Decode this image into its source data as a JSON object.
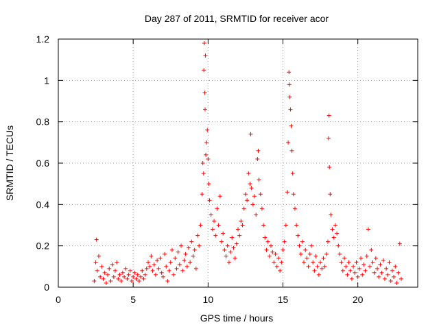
{
  "chart_data": {
    "type": "scatter",
    "title": "Day 287 of 2011, SRMTID for receiver acor",
    "xlabel": "GPS time / hours",
    "ylabel": "SRMTID / TECUs",
    "xlim": [
      0,
      24
    ],
    "ylim": [
      0,
      1.2
    ],
    "x_ticks": [
      0,
      5,
      10,
      15,
      20
    ],
    "x_tick_labels": [
      "0",
      "5",
      "10",
      "15",
      "20"
    ],
    "y_ticks": [
      0,
      0.2,
      0.4,
      0.6,
      0.8,
      1.0,
      1.2
    ],
    "y_tick_labels": [
      "0",
      "0.2",
      "0.4",
      "0.6",
      "0.8",
      "1",
      "1.2"
    ],
    "grid": true,
    "marker": "plus",
    "marker_color": "#ff0000",
    "series": [
      {
        "values": [
          [
            2.4,
            0.03
          ],
          [
            2.5,
            0.12
          ],
          [
            2.55,
            0.23
          ],
          [
            2.6,
            0.08
          ],
          [
            2.7,
            0.15
          ],
          [
            2.8,
            0.05
          ],
          [
            2.9,
            0.1
          ],
          [
            3.0,
            0.04
          ],
          [
            3.1,
            0.07
          ],
          [
            3.2,
            0.02
          ],
          [
            3.3,
            0.06
          ],
          [
            3.4,
            0.09
          ],
          [
            3.5,
            0.03
          ],
          [
            3.6,
            0.11
          ],
          [
            3.7,
            0.05
          ],
          [
            3.8,
            0.08
          ],
          [
            3.9,
            0.12
          ],
          [
            4.0,
            0.04
          ],
          [
            4.1,
            0.06
          ],
          [
            4.2,
            0.03
          ],
          [
            4.3,
            0.07
          ],
          [
            4.4,
            0.05
          ],
          [
            4.5,
            0.09
          ],
          [
            4.6,
            0.04
          ],
          [
            4.7,
            0.06
          ],
          [
            4.8,
            0.08
          ],
          [
            4.9,
            0.03
          ],
          [
            5.0,
            0.05
          ],
          [
            5.1,
            0.07
          ],
          [
            5.2,
            0.04
          ],
          [
            5.3,
            0.06
          ],
          [
            5.4,
            0.03
          ],
          [
            5.5,
            0.05
          ],
          [
            5.6,
            0.08
          ],
          [
            5.7,
            0.04
          ],
          [
            5.8,
            0.06
          ],
          [
            5.9,
            0.09
          ],
          [
            6.0,
            0.12
          ],
          [
            6.1,
            0.1
          ],
          [
            6.2,
            0.15
          ],
          [
            6.3,
            0.08
          ],
          [
            6.4,
            0.11
          ],
          [
            6.5,
            0.06
          ],
          [
            6.6,
            0.13
          ],
          [
            6.7,
            0.09
          ],
          [
            6.8,
            0.14
          ],
          [
            6.9,
            0.07
          ],
          [
            7.0,
            0.05
          ],
          [
            7.1,
            0.16
          ],
          [
            7.2,
            0.1
          ],
          [
            7.3,
            0.03
          ],
          [
            7.4,
            0.08
          ],
          [
            7.5,
            0.12
          ],
          [
            7.6,
            0.18
          ],
          [
            7.7,
            0.06
          ],
          [
            7.8,
            0.14
          ],
          [
            7.9,
            0.09
          ],
          [
            8.0,
            0.17
          ],
          [
            8.1,
            0.11
          ],
          [
            8.2,
            0.2
          ],
          [
            8.3,
            0.08
          ],
          [
            8.4,
            0.13
          ],
          [
            8.5,
            0.16
          ],
          [
            8.6,
            0.1
          ],
          [
            8.7,
            0.19
          ],
          [
            8.8,
            0.12
          ],
          [
            8.9,
            0.22
          ],
          [
            9.0,
            0.15
          ],
          [
            9.1,
            0.18
          ],
          [
            9.2,
            0.09
          ],
          [
            9.3,
            0.25
          ],
          [
            9.4,
            0.2
          ],
          [
            9.5,
            0.3
          ],
          [
            9.6,
            0.45
          ],
          [
            9.65,
            0.6
          ],
          [
            9.7,
            0.55
          ],
          [
            9.72,
            1.05
          ],
          [
            9.75,
            1.18
          ],
          [
            9.78,
            0.94
          ],
          [
            9.8,
            0.86
          ],
          [
            9.82,
            1.12
          ],
          [
            9.85,
            0.64
          ],
          [
            9.9,
            0.7
          ],
          [
            9.95,
            0.76
          ],
          [
            10.0,
            0.62
          ],
          [
            10.05,
            0.5
          ],
          [
            10.1,
            0.42
          ],
          [
            10.2,
            0.35
          ],
          [
            10.3,
            0.28
          ],
          [
            10.4,
            0.32
          ],
          [
            10.5,
            0.25
          ],
          [
            10.6,
            0.38
          ],
          [
            10.7,
            0.3
          ],
          [
            10.8,
            0.44
          ],
          [
            10.9,
            0.22
          ],
          [
            11.0,
            0.26
          ],
          [
            11.1,
            0.18
          ],
          [
            11.2,
            0.15
          ],
          [
            11.3,
            0.2
          ],
          [
            11.4,
            0.12
          ],
          [
            11.5,
            0.17
          ],
          [
            11.6,
            0.24
          ],
          [
            11.7,
            0.19
          ],
          [
            11.8,
            0.14
          ],
          [
            11.9,
            0.21
          ],
          [
            12.0,
            0.28
          ],
          [
            12.1,
            0.25
          ],
          [
            12.2,
            0.32
          ],
          [
            12.3,
            0.3
          ],
          [
            12.4,
            0.38
          ],
          [
            12.5,
            0.45
          ],
          [
            12.6,
            0.42
          ],
          [
            12.7,
            0.55
          ],
          [
            12.8,
            0.5
          ],
          [
            12.85,
            0.74
          ],
          [
            12.9,
            0.48
          ],
          [
            13.0,
            0.4
          ],
          [
            13.1,
            0.44
          ],
          [
            13.2,
            0.35
          ],
          [
            13.3,
            0.62
          ],
          [
            13.35,
            0.66
          ],
          [
            13.4,
            0.52
          ],
          [
            13.5,
            0.45
          ],
          [
            13.6,
            0.38
          ],
          [
            13.7,
            0.3
          ],
          [
            13.8,
            0.24
          ],
          [
            13.9,
            0.18
          ],
          [
            14.0,
            0.22
          ],
          [
            14.1,
            0.15
          ],
          [
            14.2,
            0.2
          ],
          [
            14.3,
            0.17
          ],
          [
            14.4,
            0.12
          ],
          [
            14.5,
            0.16
          ],
          [
            14.6,
            0.1
          ],
          [
            14.7,
            0.14
          ],
          [
            14.8,
            0.08
          ],
          [
            14.9,
            0.12
          ],
          [
            15.0,
            0.18
          ],
          [
            15.1,
            0.22
          ],
          [
            15.2,
            0.3
          ],
          [
            15.3,
            0.46
          ],
          [
            15.35,
            0.7
          ],
          [
            15.4,
            1.04
          ],
          [
            15.42,
            0.98
          ],
          [
            15.45,
            0.92
          ],
          [
            15.5,
            0.86
          ],
          [
            15.55,
            0.78
          ],
          [
            15.6,
            0.66
          ],
          [
            15.65,
            0.55
          ],
          [
            15.7,
            0.45
          ],
          [
            15.8,
            0.38
          ],
          [
            15.9,
            0.3
          ],
          [
            16.0,
            0.25
          ],
          [
            16.1,
            0.2
          ],
          [
            16.2,
            0.16
          ],
          [
            16.3,
            0.22
          ],
          [
            16.4,
            0.12
          ],
          [
            16.5,
            0.18
          ],
          [
            16.6,
            0.14
          ],
          [
            16.7,
            0.1
          ],
          [
            16.8,
            0.16
          ],
          [
            16.9,
            0.2
          ],
          [
            17.0,
            0.12
          ],
          [
            17.1,
            0.08
          ],
          [
            17.2,
            0.15
          ],
          [
            17.3,
            0.1
          ],
          [
            17.4,
            0.06
          ],
          [
            17.5,
            0.12
          ],
          [
            17.6,
            0.09
          ],
          [
            17.7,
            0.14
          ],
          [
            17.8,
            0.1
          ],
          [
            17.9,
            0.16
          ],
          [
            18.0,
            0.22
          ],
          [
            18.05,
            0.72
          ],
          [
            18.08,
            0.83
          ],
          [
            18.1,
            0.58
          ],
          [
            18.15,
            0.45
          ],
          [
            18.2,
            0.35
          ],
          [
            18.3,
            0.28
          ],
          [
            18.4,
            0.24
          ],
          [
            18.5,
            0.3
          ],
          [
            18.6,
            0.26
          ],
          [
            18.7,
            0.2
          ],
          [
            18.8,
            0.16
          ],
          [
            18.9,
            0.12
          ],
          [
            19.0,
            0.08
          ],
          [
            19.1,
            0.14
          ],
          [
            19.2,
            0.1
          ],
          [
            19.3,
            0.06
          ],
          [
            19.4,
            0.12
          ],
          [
            19.5,
            0.08
          ],
          [
            19.6,
            0.04
          ],
          [
            19.7,
            0.1
          ],
          [
            19.8,
            0.07
          ],
          [
            19.9,
            0.12
          ],
          [
            20.0,
            0.05
          ],
          [
            20.1,
            0.09
          ],
          [
            20.2,
            0.14
          ],
          [
            20.3,
            0.06
          ],
          [
            20.4,
            0.11
          ],
          [
            20.5,
            0.08
          ],
          [
            20.6,
            0.15
          ],
          [
            20.7,
            0.28
          ],
          [
            20.8,
            0.1
          ],
          [
            20.9,
            0.18
          ],
          [
            21.0,
            0.12
          ],
          [
            21.1,
            0.07
          ],
          [
            21.2,
            0.14
          ],
          [
            21.3,
            0.09
          ],
          [
            21.4,
            0.05
          ],
          [
            21.5,
            0.11
          ],
          [
            21.6,
            0.07
          ],
          [
            21.7,
            0.13
          ],
          [
            21.8,
            0.04
          ],
          [
            21.9,
            0.09
          ],
          [
            22.0,
            0.06
          ],
          [
            22.1,
            0.12
          ],
          [
            22.2,
            0.03
          ],
          [
            22.3,
            0.08
          ],
          [
            22.4,
            0.05
          ],
          [
            22.5,
            0.1
          ],
          [
            22.6,
            0.02
          ],
          [
            22.7,
            0.07
          ],
          [
            22.8,
            0.21
          ],
          [
            22.9,
            0.04
          ]
        ]
      }
    ]
  }
}
